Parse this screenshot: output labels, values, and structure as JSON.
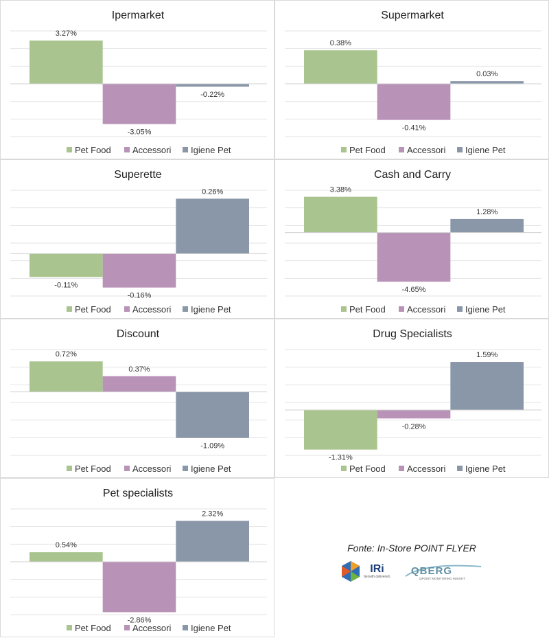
{
  "legend_colors": {
    "Pet Food": "#a9c48e",
    "Accessori": "#b992b8",
    "Igiene Pet": "#8a97a8"
  },
  "chart_data": [
    {
      "type": "bar",
      "title": "Ipermarket",
      "categories": [
        "Pet Food",
        "Accessori",
        "Igiene Pet"
      ],
      "values": [
        3.27,
        -3.05,
        -0.22
      ],
      "labels": [
        "3.27%",
        "-3.05%",
        "-0.22%"
      ],
      "legend": [
        "Pet Food",
        "Accessori",
        "Igiene Pet"
      ],
      "legend_position": "bottom",
      "ylim": [
        -4,
        4
      ]
    },
    {
      "type": "bar",
      "title": "Supermarket",
      "categories": [
        "Pet Food",
        "Accessori",
        "Igiene Pet"
      ],
      "values": [
        0.38,
        -0.41,
        0.03
      ],
      "labels": [
        "0.38%",
        "-0.41%",
        "0.03%"
      ],
      "legend": [
        "Pet Food",
        "Accessori",
        "Igiene Pet"
      ],
      "legend_position": "bottom",
      "ylim": [
        -0.6,
        0.6
      ]
    },
    {
      "type": "bar",
      "title": "Superette",
      "categories": [
        "Pet Food",
        "Accessori",
        "Igiene Pet"
      ],
      "values": [
        -0.11,
        -0.16,
        0.26
      ],
      "labels": [
        "-0.11%",
        "-0.16%",
        "0.26%"
      ],
      "legend": [
        "Pet Food",
        "Accessori",
        "Igiene Pet"
      ],
      "legend_position": "bottom",
      "ylim": [
        -0.2,
        0.3
      ]
    },
    {
      "type": "bar",
      "title": "Cash and Carry",
      "categories": [
        "Pet Food",
        "Accessori",
        "Igiene Pet"
      ],
      "values": [
        3.38,
        -4.65,
        1.28
      ],
      "labels": [
        "3.38%",
        "-4.65%",
        "1.28%"
      ],
      "legend": [
        "Pet Food",
        "Accessori",
        "Igiene Pet"
      ],
      "legend_position": "bottom",
      "ylim": [
        -6,
        4
      ]
    },
    {
      "type": "bar",
      "title": "Discount",
      "categories": [
        "Pet Food",
        "Accessori",
        "Igiene Pet"
      ],
      "values": [
        0.72,
        0.37,
        -1.09
      ],
      "labels": [
        "0.72%",
        "0.37%",
        "-1.09%"
      ],
      "legend": [
        "Pet Food",
        "Accessori",
        "Igiene Pet"
      ],
      "legend_position": "bottom",
      "ylim": [
        -1.5,
        1
      ]
    },
    {
      "type": "bar",
      "title": "Drug Specialists",
      "categories": [
        "Pet Food",
        "Accessori",
        "Igiene Pet"
      ],
      "values": [
        -1.31,
        -0.28,
        1.59
      ],
      "labels": [
        "-1.31%",
        "-0.28%",
        "1.59%"
      ],
      "legend": [
        "Pet Food",
        "Accessori",
        "Igiene Pet"
      ],
      "legend_position": "bottom",
      "ylim": [
        -1.5,
        2
      ]
    },
    {
      "type": "bar",
      "title": "Pet specialists",
      "categories": [
        "Pet Food",
        "Accessori",
        "Igiene Pet"
      ],
      "values": [
        0.54,
        -2.86,
        2.32
      ],
      "labels": [
        "0.54%",
        "-2.86%",
        "2.32%"
      ],
      "legend": [
        "Pet Food",
        "Accessori",
        "Igiene Pet"
      ],
      "legend_position": "bottom",
      "ylim": [
        -3,
        3
      ]
    }
  ],
  "source": {
    "text": "Fonte: In-Store POINT FLYER",
    "logo_iri_text": "IRi",
    "logo_iri_tagline": "Growth delivered.",
    "logo_qberg_text": "QBERG",
    "logo_qberg_tagline": "QPOINT MONITORING INSIGHT"
  }
}
